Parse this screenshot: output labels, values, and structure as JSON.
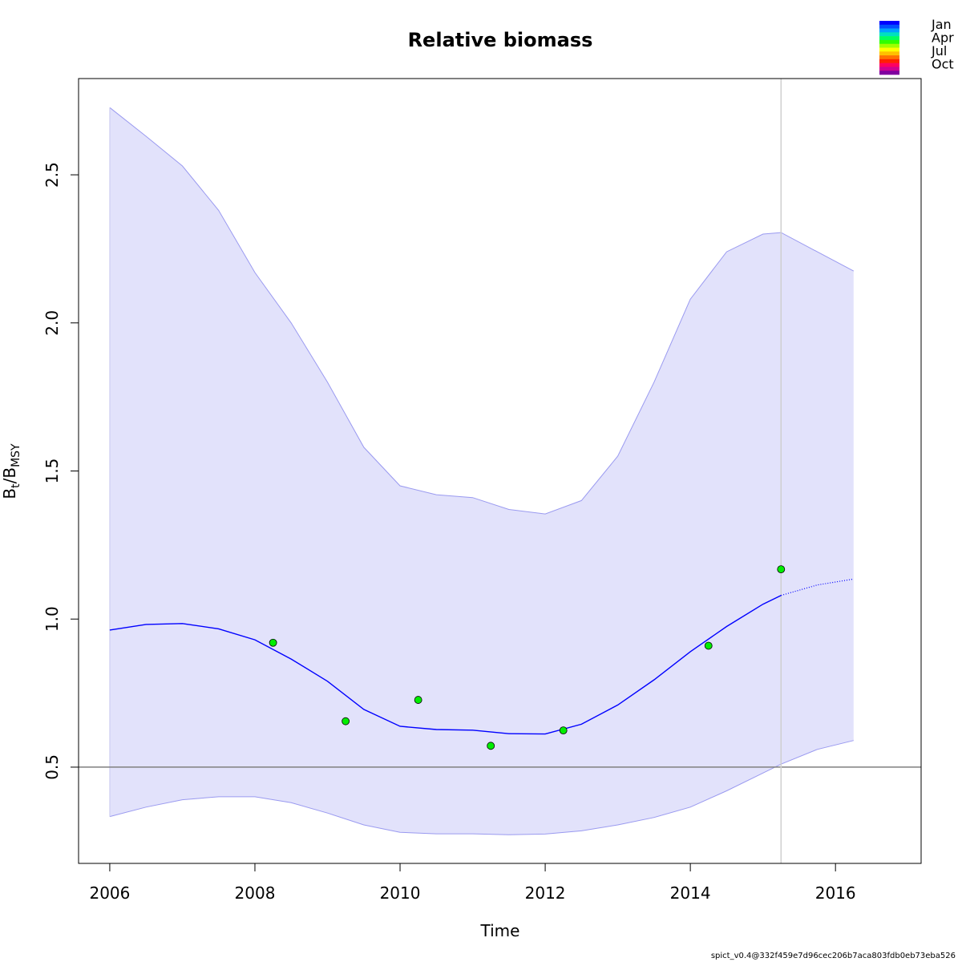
{
  "chart_data": {
    "type": "line",
    "title": "Relative biomass",
    "xlabel": "Time",
    "ylabel_main": "B",
    "ylabel_sub1": "t",
    "ylabel_sep": "/B",
    "ylabel_sub2": "MSY",
    "xlim": [
      2005.57,
      2017.18
    ],
    "ylim": [
      0.175,
      2.825
    ],
    "x_ticks": [
      2006,
      2008,
      2010,
      2012,
      2014,
      2016
    ],
    "x_tick_labels": [
      "2006",
      "2008",
      "2010",
      "2012",
      "2014",
      "2016"
    ],
    "y_ticks": [
      0.5,
      1.0,
      1.5,
      2.0,
      2.5
    ],
    "y_tick_labels": [
      "0.5",
      "1.0",
      "1.5",
      "2.0",
      "2.5"
    ],
    "reference_line_y": 0.5,
    "reference_line_x": 2015.25,
    "band_upper": [
      [
        2006.0,
        2.727
      ],
      [
        2006.5,
        2.63
      ],
      [
        2007.0,
        2.53
      ],
      [
        2007.5,
        2.38
      ],
      [
        2008.0,
        2.17
      ],
      [
        2008.5,
        2.0
      ],
      [
        2009.0,
        1.8
      ],
      [
        2009.5,
        1.58
      ],
      [
        2010.0,
        1.45
      ],
      [
        2010.5,
        1.42
      ],
      [
        2011.0,
        1.41
      ],
      [
        2011.5,
        1.37
      ],
      [
        2012.0,
        1.355
      ],
      [
        2012.5,
        1.4
      ],
      [
        2013.0,
        1.55
      ],
      [
        2013.5,
        1.8
      ],
      [
        2014.0,
        2.08
      ],
      [
        2014.5,
        2.24
      ],
      [
        2015.0,
        2.3
      ],
      [
        2015.25,
        2.305
      ],
      [
        2015.75,
        2.24
      ],
      [
        2016.25,
        2.175
      ]
    ],
    "band_lower": [
      [
        2006.0,
        0.333
      ],
      [
        2006.5,
        0.365
      ],
      [
        2007.0,
        0.39
      ],
      [
        2007.5,
        0.4
      ],
      [
        2008.0,
        0.4
      ],
      [
        2008.5,
        0.38
      ],
      [
        2009.0,
        0.345
      ],
      [
        2009.5,
        0.305
      ],
      [
        2010.0,
        0.28
      ],
      [
        2010.5,
        0.275
      ],
      [
        2011.0,
        0.275
      ],
      [
        2011.5,
        0.272
      ],
      [
        2012.0,
        0.274
      ],
      [
        2012.5,
        0.285
      ],
      [
        2013.0,
        0.305
      ],
      [
        2013.5,
        0.33
      ],
      [
        2014.0,
        0.365
      ],
      [
        2014.5,
        0.42
      ],
      [
        2015.0,
        0.48
      ],
      [
        2015.25,
        0.51
      ],
      [
        2015.75,
        0.56
      ],
      [
        2016.25,
        0.59
      ]
    ],
    "series": [
      {
        "line": [
          [
            2006.0,
            0.963
          ],
          [
            2006.5,
            0.982
          ],
          [
            2007.0,
            0.985
          ],
          [
            2007.5,
            0.967
          ],
          [
            2008.0,
            0.93
          ],
          [
            2008.5,
            0.865
          ],
          [
            2009.0,
            0.79
          ],
          [
            2009.5,
            0.695
          ],
          [
            2010.0,
            0.638
          ],
          [
            2010.5,
            0.627
          ],
          [
            2011.0,
            0.625
          ],
          [
            2011.5,
            0.613
          ],
          [
            2012.0,
            0.612
          ],
          [
            2012.5,
            0.645
          ],
          [
            2013.0,
            0.71
          ],
          [
            2013.5,
            0.795
          ],
          [
            2014.0,
            0.89
          ],
          [
            2014.5,
            0.975
          ],
          [
            2015.0,
            1.05
          ],
          [
            2015.25,
            1.08
          ]
        ],
        "projection": [
          [
            2015.25,
            1.08
          ],
          [
            2015.75,
            1.115
          ],
          [
            2016.25,
            1.135
          ]
        ],
        "color": "#0000ff"
      }
    ],
    "observations": [
      {
        "x": 2008.25,
        "y": 0.92
      },
      {
        "x": 2009.25,
        "y": 0.655
      },
      {
        "x": 2010.25,
        "y": 0.727
      },
      {
        "x": 2011.25,
        "y": 0.572
      },
      {
        "x": 2012.25,
        "y": 0.624
      },
      {
        "x": 2014.25,
        "y": 0.91
      },
      {
        "x": 2015.25,
        "y": 1.168
      }
    ],
    "observation_color": "#00ee00",
    "band_color": "#e2e2fb",
    "band_edge_color": "#9a9af0",
    "legend": {
      "placement": "top-right",
      "labels": [
        "Jan",
        "Apr",
        "Jul",
        "Oct"
      ],
      "colors": [
        "#0000ff",
        "#0050ff",
        "#00a0ff",
        "#00e0c0",
        "#00ff60",
        "#30ff00",
        "#a0ff00",
        "#ffff00",
        "#ffc000",
        "#ff7000",
        "#ff2000",
        "#ff0060",
        "#d00090",
        "#8000a0"
      ]
    }
  },
  "footer": "spict_v0.4@332f459e7d96cec206b7aca803fdb0eb73eba526"
}
